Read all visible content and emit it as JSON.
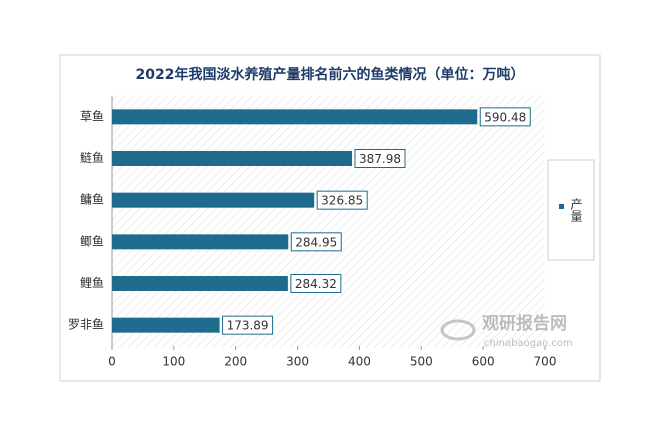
{
  "chart_data": {
    "type": "hbar",
    "title": "2022年我国淡水养殖产量排名前六的鱼类情况（单位：万吨）",
    "categories": [
      "草鱼",
      "鲢鱼",
      "鳙鱼",
      "鲫鱼",
      "鲤鱼",
      "罗非鱼"
    ],
    "series": [
      {
        "name": "产量",
        "color": "#1f6b8e",
        "values": [
          590.48,
          387.98,
          326.85,
          284.95,
          284.32,
          173.89
        ]
      }
    ],
    "xlim": [
      0,
      700
    ],
    "xticks": [
      0,
      100,
      200,
      300,
      400,
      500,
      600,
      700
    ],
    "legend": "right",
    "watermark": {
      "name": "观研报告网",
      "url": "chinabaogao.com"
    }
  }
}
